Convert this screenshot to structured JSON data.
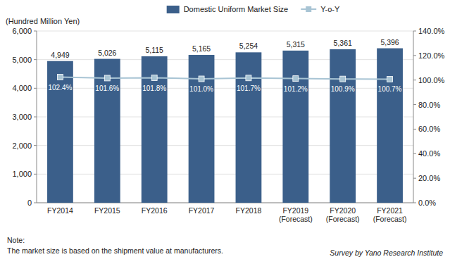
{
  "chart_data": {
    "type": "bar",
    "categories": [
      "FY2014",
      "FY2015",
      "FY2016",
      "FY2017",
      "FY2018",
      "FY2019\n(Forecast)",
      "FY2020\n(Forecast)",
      "FY2021\n(Forecast)"
    ],
    "series": [
      {
        "name": "Domestic Uniform Market Size",
        "type": "bar",
        "color": "#3B5F8A",
        "values": [
          4949,
          5026,
          5115,
          5165,
          5254,
          5315,
          5361,
          5396
        ],
        "value_labels": [
          "4,949",
          "5,026",
          "5,115",
          "5,165",
          "5,254",
          "5,315",
          "5,361",
          "5,396"
        ],
        "data_labels": true
      },
      {
        "name": "Y-o-Y",
        "type": "line",
        "color": "#A8C4D4",
        "marker": "square",
        "axis": "y2",
        "values": [
          102.4,
          101.6,
          101.8,
          101.0,
          101.7,
          101.2,
          100.9,
          100.7
        ],
        "value_labels": [
          "102.4%",
          "101.6%",
          "101.8%",
          "101.0%",
          "101.7%",
          "101.2%",
          "100.9%",
          "100.7%"
        ],
        "data_labels": true
      }
    ],
    "y_label": "(Hundred Million Yen)",
    "ylim": [
      0,
      6000
    ],
    "yticks": [
      0,
      {
        "value": 1000,
        "label": "1,000"
      },
      {
        "value": 2000,
        "label": "2,000"
      },
      {
        "value": 3000,
        "label": "3,000"
      },
      {
        "value": 4000,
        "label": "4,000"
      },
      {
        "value": 5000,
        "label": "5,000"
      },
      {
        "value": 6000,
        "label": "6,000"
      }
    ],
    "y2lim": [
      0.0,
      140.0
    ],
    "y2ticks": [
      {
        "value": 0.0,
        "label": "0.0%"
      },
      {
        "value": 20.0,
        "label": "20.0%"
      },
      {
        "value": 40.0,
        "label": "40.0%"
      },
      {
        "value": 60.0,
        "label": "60.0%"
      },
      {
        "value": 80.0,
        "label": "80.0%"
      },
      {
        "value": 100.0,
        "label": "100.0%"
      },
      {
        "value": 120.0,
        "label": "120.0%"
      },
      {
        "value": 140.0,
        "label": "140.0%"
      }
    ],
    "annotations": [
      "Note:",
      "The market size is based on the shipment value at manufacturers.",
      "Survey by Yano Research Institute"
    ],
    "grid": true,
    "legend": "top"
  }
}
